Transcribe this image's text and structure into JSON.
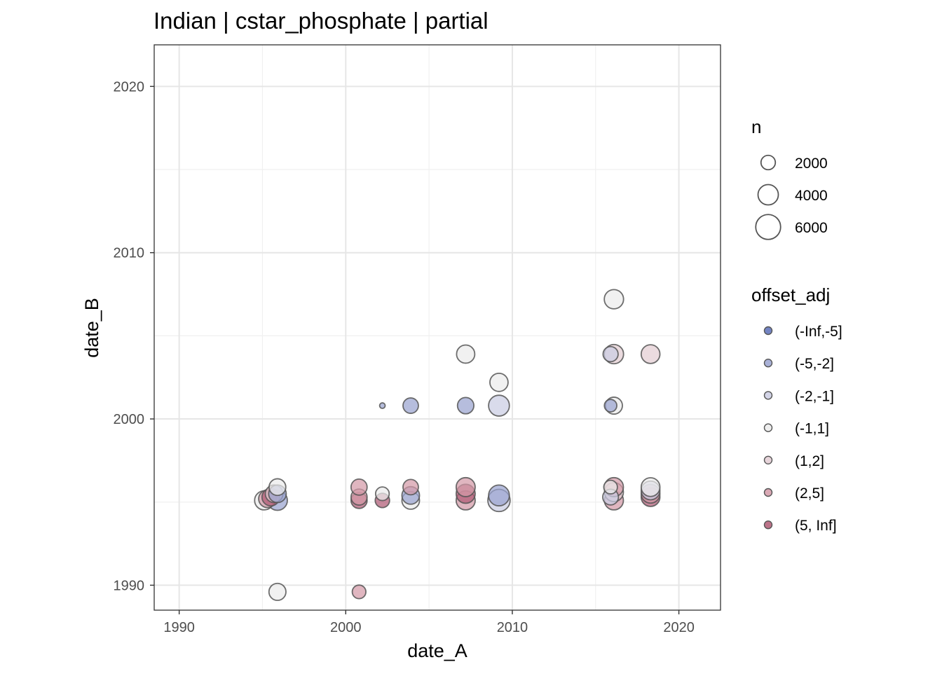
{
  "chart_data": {
    "type": "scatter",
    "title": "Indian | cstar_phosphate | partial",
    "xlabel": "date_A",
    "ylabel": "date_B",
    "xlim": [
      1988.5,
      2022.5
    ],
    "ylim": [
      1988.5,
      2022.5
    ],
    "x_ticks": [
      1990,
      2000,
      2010,
      2020
    ],
    "y_ticks": [
      1990,
      2000,
      2010,
      2020
    ],
    "x_tick_labels": [
      "1990",
      "2000",
      "2010",
      "2020"
    ],
    "y_tick_labels": [
      "1990",
      "2000",
      "2010",
      "2020"
    ],
    "grid": true,
    "legend_placement": "right",
    "size_legend": {
      "title": "n",
      "entries": [
        {
          "label": "2000",
          "value": 2000
        },
        {
          "label": "4000",
          "value": 4000
        },
        {
          "label": "6000",
          "value": 6000
        }
      ]
    },
    "color_legend": {
      "title": "offset_adj",
      "entries": [
        {
          "label": "(-Inf,-5]",
          "color": "#5a6fb8"
        },
        {
          "label": "(-5,-2]",
          "color": "#9aa3d0"
        },
        {
          "label": "(-2,-1]",
          "color": "#cbcde3"
        },
        {
          "label": "(-1,1]",
          "color": "#ebebeb"
        },
        {
          "label": "(1,2]",
          "color": "#e3cdd3"
        },
        {
          "label": "(2,5]",
          "color": "#d49aa8"
        },
        {
          "label": "(5, Inf]",
          "color": "#b05a74"
        }
      ]
    },
    "points": [
      {
        "x": 1995.1,
        "y": 1995.1,
        "n": 3500,
        "offset": "(-1,1]"
      },
      {
        "x": 1995.3,
        "y": 1995.2,
        "n": 3000,
        "offset": "(2,5]"
      },
      {
        "x": 1995.5,
        "y": 1995.3,
        "n": 3000,
        "offset": "(5, Inf]"
      },
      {
        "x": 1995.7,
        "y": 1995.5,
        "n": 3000,
        "offset": "(1,2]"
      },
      {
        "x": 1995.9,
        "y": 1995.1,
        "n": 3800,
        "offset": "(-5,-2]"
      },
      {
        "x": 1995.9,
        "y": 1995.5,
        "n": 3000,
        "offset": "(-5,-2]"
      },
      {
        "x": 1995.9,
        "y": 1995.9,
        "n": 2700,
        "offset": "(-1,1]"
      },
      {
        "x": 1995.9,
        "y": 1989.6,
        "n": 2800,
        "offset": "(-1,1]"
      },
      {
        "x": 2000.8,
        "y": 1995.1,
        "n": 2500,
        "offset": "(5, Inf]"
      },
      {
        "x": 2000.8,
        "y": 1995.3,
        "n": 2500,
        "offset": "(2,5]"
      },
      {
        "x": 2000.8,
        "y": 1995.9,
        "n": 2500,
        "offset": "(2,5]"
      },
      {
        "x": 2000.8,
        "y": 1989.6,
        "n": 1800,
        "offset": "(2,5]"
      },
      {
        "x": 2002.2,
        "y": 2000.8,
        "n": 300,
        "offset": "(-5,-2]"
      },
      {
        "x": 2002.2,
        "y": 1995.1,
        "n": 2000,
        "offset": "(5, Inf]"
      },
      {
        "x": 2002.2,
        "y": 1995.5,
        "n": 1800,
        "offset": "(-1,1]"
      },
      {
        "x": 2003.9,
        "y": 2000.8,
        "n": 2300,
        "offset": "(-5,-2]"
      },
      {
        "x": 2003.9,
        "y": 1995.1,
        "n": 3000,
        "offset": "(-1,1]"
      },
      {
        "x": 2003.9,
        "y": 1995.4,
        "n": 3000,
        "offset": "(-5,-2]"
      },
      {
        "x": 2003.9,
        "y": 1995.9,
        "n": 2300,
        "offset": "(2,5]"
      },
      {
        "x": 2007.2,
        "y": 2003.9,
        "n": 3200,
        "offset": "(-1,1]"
      },
      {
        "x": 2007.2,
        "y": 2000.8,
        "n": 2600,
        "offset": "(-5,-2]"
      },
      {
        "x": 2007.2,
        "y": 1995.1,
        "n": 3500,
        "offset": "(2,5]"
      },
      {
        "x": 2007.2,
        "y": 1995.5,
        "n": 3500,
        "offset": "(5, Inf]"
      },
      {
        "x": 2007.2,
        "y": 1995.9,
        "n": 3500,
        "offset": "(2,5]"
      },
      {
        "x": 2009.2,
        "y": 2002.2,
        "n": 3200,
        "offset": "(-1,1]"
      },
      {
        "x": 2009.2,
        "y": 2000.8,
        "n": 4200,
        "offset": "(-2,-1]"
      },
      {
        "x": 2009.2,
        "y": 1995.1,
        "n": 4800,
        "offset": "(-2,-1]"
      },
      {
        "x": 2009.2,
        "y": 1995.4,
        "n": 4200,
        "offset": "(-5,-2]"
      },
      {
        "x": 2016.1,
        "y": 2007.2,
        "n": 3600,
        "offset": "(-1,1]"
      },
      {
        "x": 2016.1,
        "y": 2003.9,
        "n": 3600,
        "offset": "(1,2]"
      },
      {
        "x": 2015.9,
        "y": 2003.9,
        "n": 2200,
        "offset": "(-2,-1]"
      },
      {
        "x": 2016.1,
        "y": 2000.8,
        "n": 2800,
        "offset": "(-1,1]"
      },
      {
        "x": 2015.9,
        "y": 2000.8,
        "n": 1500,
        "offset": "(-5,-2]"
      },
      {
        "x": 2016.1,
        "y": 1995.1,
        "n": 3500,
        "offset": "(2,5]"
      },
      {
        "x": 2016.1,
        "y": 1995.6,
        "n": 3500,
        "offset": "(1,2]"
      },
      {
        "x": 2016.1,
        "y": 1995.9,
        "n": 3500,
        "offset": "(2,5]"
      },
      {
        "x": 2015.9,
        "y": 1995.3,
        "n": 2400,
        "offset": "(-2,-1]"
      },
      {
        "x": 2015.9,
        "y": 1995.9,
        "n": 1800,
        "offset": "(-1,1]"
      },
      {
        "x": 2018.3,
        "y": 2003.9,
        "n": 3400,
        "offset": "(1,2]"
      },
      {
        "x": 2018.3,
        "y": 1995.3,
        "n": 3400,
        "offset": "(5, Inf]"
      },
      {
        "x": 2018.3,
        "y": 1995.5,
        "n": 3400,
        "offset": "(2,5]"
      },
      {
        "x": 2018.3,
        "y": 1995.7,
        "n": 3400,
        "offset": "(-2,-1]"
      },
      {
        "x": 2018.3,
        "y": 1995.9,
        "n": 3400,
        "offset": "(-1,1]"
      }
    ]
  }
}
